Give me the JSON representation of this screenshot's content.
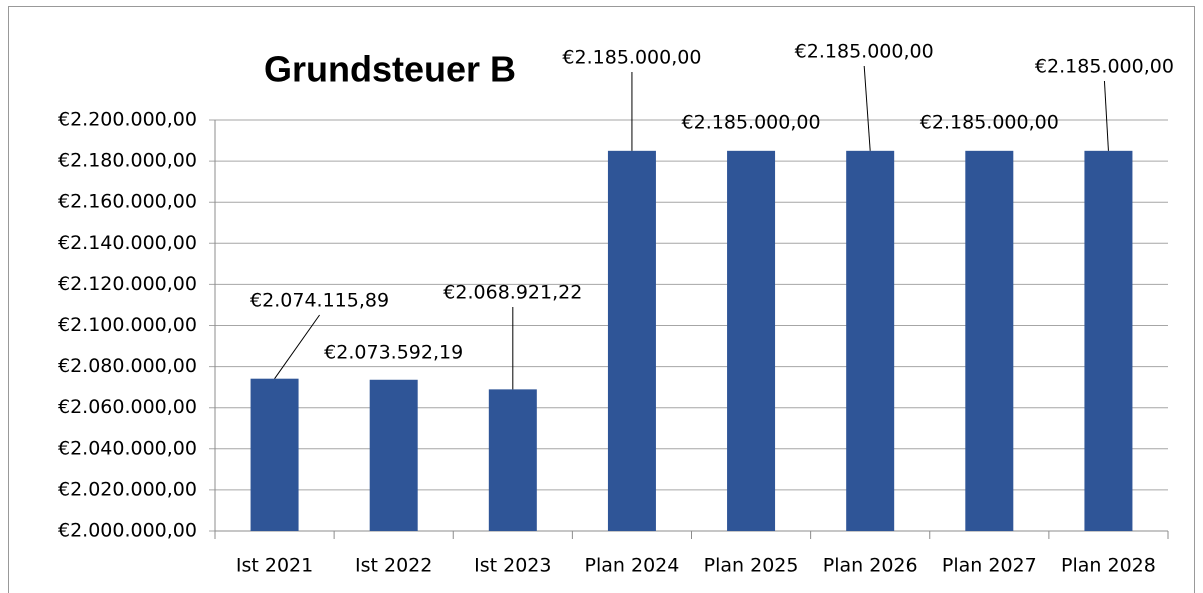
{
  "chart_data": {
    "type": "bar",
    "title": "Grundsteuer B",
    "categories": [
      "Ist 2021",
      "Ist 2022",
      "Ist 2023",
      "Plan 2024",
      "Plan 2025",
      "Plan 2026",
      "Plan 2027",
      "Plan 2028"
    ],
    "values": [
      2074115.89,
      2073592.19,
      2068921.22,
      2185000,
      2185000,
      2185000,
      2185000,
      2185000
    ],
    "value_labels": [
      "€2.074.115,89",
      "€2.073.592,19",
      "€2.068.921,22",
      "€2.185.000,00",
      "€2.185.000,00",
      "€2.185.000,00",
      "€2.185.000,00",
      "€2.185.000,00"
    ],
    "color": "#2f5597",
    "ylim": [
      2000000,
      2200000
    ],
    "yticks": [
      {
        "value": 2000000,
        "label": "€2.000.000,00"
      },
      {
        "value": 2020000,
        "label": "€2.020.000,00"
      },
      {
        "value": 2040000,
        "label": "€2.040.000,00"
      },
      {
        "value": 2060000,
        "label": "€2.060.000,00"
      },
      {
        "value": 2080000,
        "label": "€2.080.000,00"
      },
      {
        "value": 2100000,
        "label": "€2.100.000,00"
      },
      {
        "value": 2120000,
        "label": "€2.120.000,00"
      },
      {
        "value": 2140000,
        "label": "€2.140.000,00"
      },
      {
        "value": 2160000,
        "label": "€2.160.000,00"
      },
      {
        "value": 2180000,
        "label": "€2.180.000,00"
      },
      {
        "value": 2200000,
        "label": "€2.200.000,00"
      }
    ],
    "grid": true
  }
}
